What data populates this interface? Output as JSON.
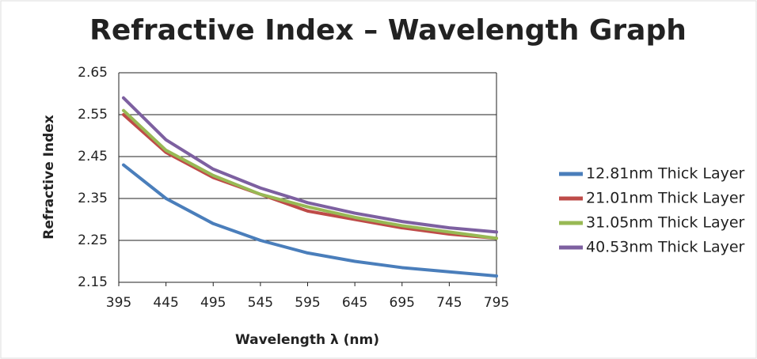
{
  "chart_data": {
    "type": "line",
    "title": "Refractive Index – Wavelength Graph",
    "x_label": "Wavelength λ (nm)",
    "y_label": "Refractive Index",
    "x": [
      400,
      445,
      495,
      545,
      595,
      645,
      695,
      745,
      795
    ],
    "series": [
      {
        "name": "12.81nm Thick Layer",
        "color": "#4a7ebb",
        "values": [
          2.43,
          2.35,
          2.29,
          2.25,
          2.22,
          2.2,
          2.185,
          2.175,
          2.165
        ]
      },
      {
        "name": "21.01nm Thick Layer",
        "color": "#be4b48",
        "values": [
          2.55,
          2.46,
          2.4,
          2.36,
          2.32,
          2.3,
          2.28,
          2.265,
          2.255
        ]
      },
      {
        "name": "31.05nm Thick Layer",
        "color": "#98b954",
        "values": [
          2.56,
          2.465,
          2.405,
          2.36,
          2.33,
          2.305,
          2.285,
          2.27,
          2.255
        ]
      },
      {
        "name": "40.53nm Thick Layer",
        "color": "#7d60a0",
        "values": [
          2.59,
          2.49,
          2.42,
          2.375,
          2.34,
          2.315,
          2.295,
          2.28,
          2.27
        ]
      }
    ],
    "xlim": [
      395,
      795
    ],
    "xticks": [
      395,
      445,
      495,
      545,
      595,
      645,
      695,
      745,
      795
    ],
    "ylim": [
      2.15,
      2.65
    ],
    "yticks": [
      2.15,
      2.25,
      2.35,
      2.45,
      2.55,
      2.65
    ],
    "grid": true,
    "legend": "right"
  }
}
